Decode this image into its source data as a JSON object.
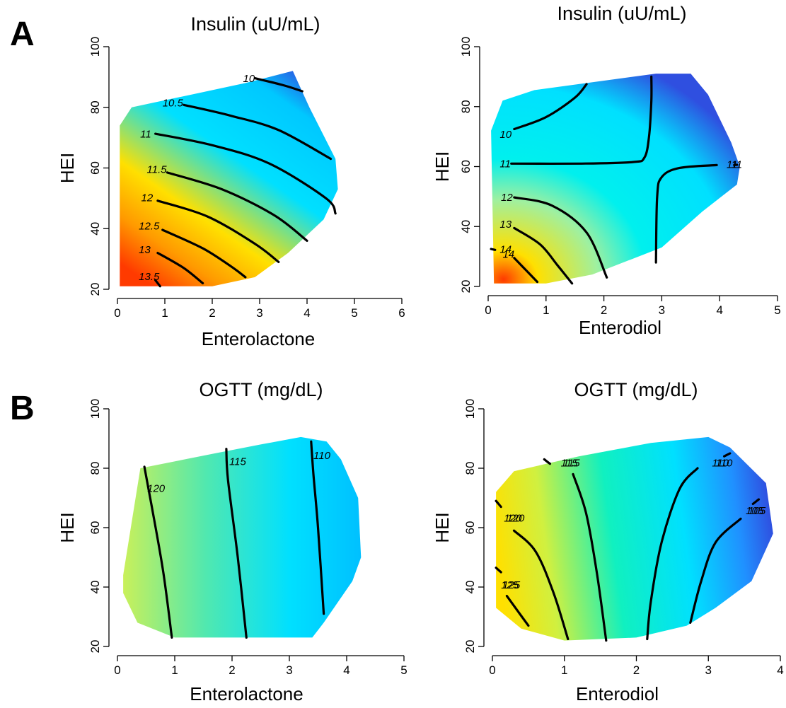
{
  "panel_labels": [
    "A",
    "B"
  ],
  "colors": {
    "low": "#2f4fe0",
    "mid": "#00e0ff",
    "high": "#ffe000",
    "max": "#ff3a00"
  },
  "chart_data": [
    {
      "type": "heatmap",
      "panel": "A",
      "title": "Insulin (uU/mL)",
      "xlabel": "Enterolactone",
      "ylabel": "HEI",
      "xlim": [
        0,
        6
      ],
      "ylim": [
        20,
        100
      ],
      "xticks": [
        "0",
        "1",
        "2",
        "3",
        "4",
        "5",
        "6"
      ],
      "yticks": [
        "20",
        "40",
        "60",
        "80",
        "100"
      ],
      "value_range": [
        9.8,
        14
      ],
      "region": [
        [
          0.05,
          21
        ],
        [
          0.05,
          74
        ],
        [
          0.3,
          80
        ],
        [
          1.5,
          84
        ],
        [
          2.7,
          88
        ],
        [
          3.7,
          92
        ],
        [
          4.05,
          80
        ],
        [
          4.6,
          63
        ],
        [
          4.65,
          53
        ],
        [
          4.35,
          43
        ],
        [
          3.6,
          32
        ],
        [
          2.9,
          24
        ],
        [
          2.0,
          21
        ]
      ],
      "contours": [
        {
          "level": "10",
          "label_at": [
            2.65,
            89.3
          ],
          "points": [
            [
              2.9,
              89.6
            ],
            [
              3.5,
              87.3
            ],
            [
              3.9,
              85.3
            ]
          ]
        },
        {
          "level": "10.5",
          "label_at": [
            0.95,
            81.2
          ],
          "points": [
            [
              1.4,
              80.8
            ],
            [
              2.4,
              77.2
            ],
            [
              3.4,
              72.5
            ],
            [
              4.5,
              63
            ]
          ]
        },
        {
          "level": "11",
          "label_at": [
            0.48,
            71
          ],
          "points": [
            [
              0.8,
              71.3
            ],
            [
              2.0,
              67.5
            ],
            [
              3.2,
              61.5
            ],
            [
              4.4,
              50
            ],
            [
              4.6,
              45
            ]
          ]
        },
        {
          "level": "11.5",
          "label_at": [
            0.62,
            59.3
          ],
          "points": [
            [
              1.05,
              58.5
            ],
            [
              2.2,
              53
            ],
            [
              3.3,
              44.5
            ],
            [
              4.0,
              36
            ]
          ]
        },
        {
          "level": "12",
          "label_at": [
            0.5,
            50
          ],
          "points": [
            [
              0.85,
              49.2
            ],
            [
              1.9,
              44
            ],
            [
              2.9,
              35
            ],
            [
              3.4,
              29
            ]
          ]
        },
        {
          "level": "12.5",
          "label_at": [
            0.45,
            40.6
          ],
          "points": [
            [
              0.95,
              39.6
            ],
            [
              1.8,
              33.5
            ],
            [
              2.4,
              27.5
            ],
            [
              2.7,
              24
            ]
          ]
        },
        {
          "level": "13",
          "label_at": [
            0.45,
            32.8
          ],
          "points": [
            [
              0.85,
              32
            ],
            [
              1.4,
              27
            ],
            [
              1.8,
              22
            ]
          ]
        },
        {
          "level": "13.5",
          "label_at": [
            0.45,
            24
          ],
          "points": [
            [
              0.8,
              23
            ],
            [
              0.9,
              21
            ]
          ]
        }
      ]
    },
    {
      "type": "heatmap",
      "panel": "A",
      "title": "Insulin (uU/mL)",
      "xlabel": "Enterodiol",
      "ylabel": "HEI",
      "xlim": [
        0,
        5
      ],
      "ylim": [
        20,
        100
      ],
      "xticks": [
        "0",
        "1",
        "2",
        "3",
        "4",
        "5"
      ],
      "yticks": [
        "20",
        "40",
        "60",
        "80",
        "100"
      ],
      "value_range": [
        9.7,
        14.8
      ],
      "region": [
        [
          0.1,
          21
        ],
        [
          0.05,
          72
        ],
        [
          0.25,
          82
        ],
        [
          0.8,
          85.5
        ],
        [
          2.9,
          91
        ],
        [
          3.5,
          91
        ],
        [
          3.8,
          84
        ],
        [
          4.2,
          68
        ],
        [
          4.35,
          60
        ],
        [
          4.3,
          54
        ],
        [
          3.7,
          45
        ],
        [
          3.0,
          33
        ],
        [
          1.8,
          24
        ],
        [
          1.0,
          21
        ]
      ],
      "contours": [
        {
          "level": "10",
          "label_at": [
            0.2,
            70.5
          ],
          "points": [
            [
              0.45,
              72.5
            ],
            [
              1.0,
              76.5
            ],
            [
              1.5,
              83
            ],
            [
              1.7,
              87.5
            ]
          ]
        },
        {
          "level": "11",
          "label_at": [
            0.2,
            60.7
          ],
          "points": [
            [
              0.4,
              61
            ],
            [
              1.6,
              61
            ],
            [
              2.5,
              61.5
            ],
            [
              2.7,
              63
            ],
            [
              2.78,
              70
            ],
            [
              2.82,
              82
            ],
            [
              2.82,
              90
            ]
          ]
        },
        {
          "level": "11",
          "label_at": [
            4.12,
            60.5
          ],
          "points": [
            [
              2.9,
              28
            ],
            [
              2.92,
              50
            ],
            [
              3.0,
              56.5
            ],
            [
              3.3,
              59.5
            ],
            [
              3.95,
              60.5
            ]
          ]
        },
        {
          "level": "11",
          "label_at": [
            4.2,
            60.5
          ],
          "points": [
            [
              4.25,
              60.5
            ],
            [
              4.3,
              60.6
            ]
          ]
        },
        {
          "level": "12",
          "label_at": [
            0.22,
            49.5
          ],
          "points": [
            [
              0.45,
              49.7
            ],
            [
              1.1,
              47
            ],
            [
              1.7,
              38
            ],
            [
              2.05,
              23
            ]
          ]
        },
        {
          "level": "13",
          "label_at": [
            0.2,
            40.5
          ],
          "points": [
            [
              0.45,
              39.5
            ],
            [
              0.9,
              34
            ],
            [
              1.2,
              27
            ],
            [
              1.45,
              21
            ]
          ]
        },
        {
          "level": "14",
          "label_at": [
            0.25,
            30.5
          ],
          "points": [
            [
              0.45,
              29.5
            ],
            [
              0.65,
              25.5
            ],
            [
              0.85,
              21.5
            ]
          ]
        },
        {
          "level": "14",
          "label_at": [
            0.2,
            32.2
          ],
          "points": [
            [
              0.05,
              32.5
            ],
            [
              0.12,
              32.2
            ]
          ]
        }
      ]
    },
    {
      "type": "heatmap",
      "panel": "B",
      "title": "OGTT (mg/dL)",
      "xlabel": "Enterolactone",
      "ylabel": "HEI",
      "xlim": [
        0,
        5
      ],
      "ylim": [
        20,
        100
      ],
      "xticks": [
        "0",
        "1",
        "2",
        "3",
        "4",
        "5"
      ],
      "yticks": [
        "20",
        "40",
        "60",
        "80",
        "100"
      ],
      "value_range": [
        105,
        124
      ],
      "region": [
        [
          0.1,
          44
        ],
        [
          0.4,
          80
        ],
        [
          1.7,
          85
        ],
        [
          2.5,
          88
        ],
        [
          3.2,
          90.5
        ],
        [
          3.65,
          89
        ],
        [
          3.9,
          83
        ],
        [
          4.2,
          70
        ],
        [
          4.25,
          50
        ],
        [
          4.1,
          42
        ],
        [
          3.6,
          28
        ],
        [
          3.4,
          23
        ],
        [
          1.0,
          23
        ],
        [
          0.35,
          28
        ],
        [
          0.1,
          38
        ]
      ],
      "contours": [
        {
          "level": "120",
          "label_at": [
            0.52,
            73
          ],
          "points": [
            [
              0.47,
              80.5
            ],
            [
              0.6,
              67
            ],
            [
              0.8,
              45
            ],
            [
              0.95,
              23
            ]
          ]
        },
        {
          "level": "115",
          "label_at": [
            1.95,
            82
          ],
          "points": [
            [
              1.9,
              86.5
            ],
            [
              1.93,
              76
            ],
            [
              2.1,
              50
            ],
            [
              2.25,
              23
            ]
          ]
        },
        {
          "level": "110",
          "label_at": [
            3.42,
            84
          ],
          "points": [
            [
              3.38,
              89
            ],
            [
              3.42,
              78
            ],
            [
              3.5,
              60
            ],
            [
              3.6,
              31
            ]
          ]
        }
      ]
    },
    {
      "type": "heatmap",
      "panel": "B",
      "title": "OGTT (mg/dL)",
      "xlabel": "Enterodiol",
      "ylabel": "HEI",
      "xlim": [
        0,
        4
      ],
      "ylim": [
        20,
        100
      ],
      "xticks": [
        "0",
        "1",
        "2",
        "3",
        "4"
      ],
      "yticks": [
        "20",
        "40",
        "60",
        "80",
        "100"
      ],
      "value_range": [
        102,
        128
      ],
      "region": [
        [
          0.05,
          33
        ],
        [
          0.05,
          72
        ],
        [
          0.3,
          79
        ],
        [
          1.2,
          84
        ],
        [
          2.2,
          88.5
        ],
        [
          3.0,
          90.5
        ],
        [
          3.3,
          87
        ],
        [
          3.8,
          75
        ],
        [
          3.9,
          58
        ],
        [
          3.6,
          42
        ],
        [
          3.1,
          33
        ],
        [
          2.7,
          27
        ],
        [
          2.0,
          23
        ],
        [
          1.0,
          22
        ],
        [
          0.4,
          26
        ]
      ],
      "contours": [
        {
          "level": "125",
          "label_at": [
            0.12,
            40.5
          ],
          "points": [
            [
              0.05,
              46.5
            ],
            [
              0.12,
              45
            ]
          ]
        },
        {
          "level": "125",
          "label_at": [
            0.14,
            40.5
          ],
          "points": [
            [
              0.2,
              37
            ],
            [
              0.35,
              32
            ],
            [
              0.5,
              27
            ]
          ]
        },
        {
          "level": "120",
          "label_at": [
            0.16,
            63
          ],
          "points": [
            [
              0.05,
              69
            ],
            [
              0.12,
              67
            ]
          ]
        },
        {
          "level": "120",
          "label_at": [
            0.2,
            63
          ],
          "points": [
            [
              0.3,
              59
            ],
            [
              0.6,
              52
            ],
            [
              0.85,
              38
            ],
            [
              1.05,
              22.5
            ]
          ]
        },
        {
          "level": "115",
          "label_at": [
            0.95,
            81.5
          ],
          "points": [
            [
              0.72,
              83
            ],
            [
              0.8,
              81.5
            ]
          ]
        },
        {
          "level": "115",
          "label_at": [
            0.98,
            81.5
          ],
          "points": [
            [
              1.12,
              78
            ],
            [
              1.3,
              65
            ],
            [
              1.45,
              45
            ],
            [
              1.58,
              22
            ]
          ]
        },
        {
          "level": "110",
          "label_at": [
            3.1,
            81.5
          ],
          "points": [
            [
              3.3,
              85
            ],
            [
              3.22,
              84
            ]
          ]
        },
        {
          "level": "110",
          "label_at": [
            3.05,
            81.5
          ],
          "points": [
            [
              2.85,
              80
            ],
            [
              2.6,
              73
            ],
            [
              2.35,
              55
            ],
            [
              2.2,
              35
            ],
            [
              2.15,
              22.5
            ]
          ]
        },
        {
          "level": "105",
          "label_at": [
            3.55,
            65.5
          ],
          "points": [
            [
              3.7,
              69.5
            ],
            [
              3.62,
              68
            ]
          ]
        },
        {
          "level": "105",
          "label_at": [
            3.52,
            65.5
          ],
          "points": [
            [
              3.45,
              63
            ],
            [
              3.1,
              55
            ],
            [
              2.9,
              42
            ],
            [
              2.75,
              28
            ]
          ]
        }
      ]
    }
  ]
}
